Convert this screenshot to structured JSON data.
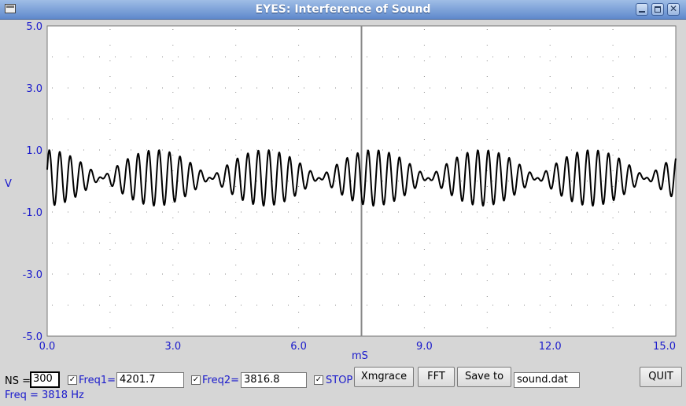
{
  "window": {
    "title": "EYES: Interference of Sound"
  },
  "chart_data": {
    "type": "line",
    "xlabel": "mS",
    "ylabel": "V",
    "xlim": [
      0,
      15
    ],
    "ylim": [
      -5,
      5
    ],
    "x_ticks": [
      "0.0",
      "3.0",
      "6.0",
      "9.0",
      "12.0",
      "15.0"
    ],
    "y_ticks": [
      "5.0",
      "3.0",
      "1.0",
      "-1.0",
      "-3.0",
      "-5.0"
    ],
    "grid": true,
    "cursor_x": 7.5,
    "series": [
      {
        "freq1_hz": 4201.7,
        "freq2_hz": 3816.8,
        "amplitude_v": 0.45,
        "offset_v": 0.1,
        "x_start": 0,
        "x_end": 15,
        "samples": 300,
        "color": "#000000"
      }
    ]
  },
  "controls": {
    "ns_label": "NS =",
    "ns_value": "300",
    "freq1_label": "Freq1=",
    "freq1_value": "4201.7",
    "freq1_checked": true,
    "freq2_label": "Freq2=",
    "freq2_value": "3816.8",
    "freq2_checked": true,
    "stop_label": "STOP",
    "stop_checked": true,
    "xmgrace_label": "Xmgrace",
    "fft_label": "FFT",
    "save_label": "Save to",
    "filename_value": "sound.dat",
    "quit_label": "QUIT",
    "freq_readout": "Freq =  3818 Hz"
  },
  "colors": {
    "label_blue": "#1a1acc",
    "trace": "#000000",
    "grid": "#888888"
  }
}
